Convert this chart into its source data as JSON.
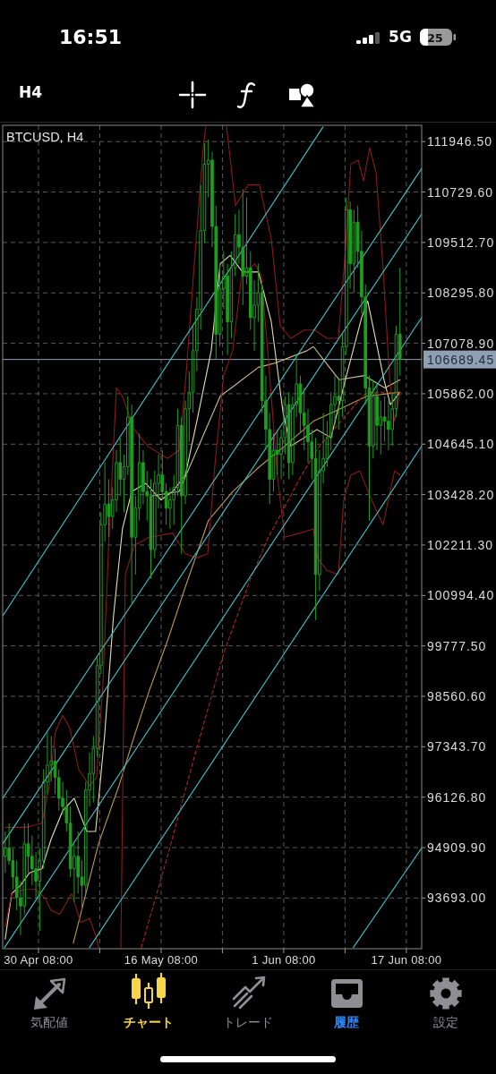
{
  "chart_data": {
    "type": "candlestick",
    "title": "BTCUSD, H4",
    "color": "#1f9e1f",
    "x": [
      "--04-26T00:00",
      "--04-26T12:00",
      "--04-27T00:00",
      "--04-27T12:00",
      "--04-28T00:00",
      "--04-28T12:00",
      "--04-29T00:00",
      "--04-29T12:00",
      "--04-30T00:00",
      "--04-30T12:00",
      "--05-01T00:00",
      "--05-01T12:00",
      "--05-02T00:00",
      "--05-02T12:00",
      "--05-03T00:00",
      "--05-03T12:00",
      "--05-04T00:00",
      "--05-04T12:00",
      "--05-05T00:00",
      "--05-05T12:00",
      "--05-06T00:00",
      "--05-06T12:00",
      "--05-07T00:00",
      "--05-07T12:00",
      "--05-08T00:00",
      "--05-08T12:00",
      "--05-09T00:00",
      "--05-09T12:00",
      "--05-10T00:00",
      "--05-10T12:00",
      "--05-11T00:00",
      "--05-11T12:00",
      "--05-12T00:00",
      "--05-12T12:00",
      "--05-13T00:00",
      "--05-13T12:00",
      "--05-14T00:00",
      "--05-14T12:00",
      "--05-15T00:00",
      "--05-15T12:00",
      "--05-16T00:00",
      "--05-16T12:00",
      "--05-17T00:00",
      "--05-17T12:00",
      "--05-18T00:00",
      "--05-18T12:00",
      "--05-19T00:00",
      "--05-19T12:00",
      "--05-20T00:00",
      "--05-20T12:00",
      "--05-21T00:00",
      "--05-21T12:00",
      "--05-22T00:00",
      "--05-22T12:00",
      "--05-23T00:00",
      "--05-23T12:00",
      "--05-24T00:00",
      "--05-24T12:00",
      "--05-25T00:00",
      "--05-25T12:00",
      "--05-26T00:00",
      "--05-26T12:00",
      "--05-27T00:00",
      "--05-27T12:00",
      "--05-28T00:00",
      "--05-28T12:00",
      "--05-29T00:00",
      "--05-29T12:00",
      "--05-30T00:00",
      "--05-30T12:00",
      "--05-31T00:00",
      "--05-31T12:00",
      "--06-01T00:00",
      "--06-01T12:00",
      "--06-02T00:00",
      "--06-02T12:00",
      "--06-03T00:00",
      "--06-03T12:00",
      "--06-04T00:00",
      "--06-04T12:00",
      "--06-05T00:00",
      "--06-05T12:00",
      "--06-06T00:00",
      "--06-06T12:00",
      "--06-07T00:00",
      "--06-07T12:00",
      "--06-08T00:00",
      "--06-08T12:00",
      "--06-09T00:00",
      "--06-09T12:00",
      "--06-10T00:00",
      "--06-10T12:00",
      "--06-11T00:00",
      "--06-11T12:00",
      "--06-12T00:00",
      "--06-12T12:00",
      "--06-13T00:00",
      "--06-13T12:00",
      "--06-14T00:00",
      "--06-14T12:00",
      "--06-15T00:00",
      "--06-15T12:00",
      "--06-16T00:00",
      "--06-16T12:00"
    ],
    "ohlc": [
      [
        94700,
        95300,
        94300,
        94900
      ],
      [
        94900,
        95500,
        94500,
        94600
      ],
      [
        94600,
        94900,
        93900,
        94200
      ],
      [
        94200,
        94600,
        93400,
        93700
      ],
      [
        93700,
        94100,
        92800,
        93500
      ],
      [
        93500,
        95500,
        93300,
        95000
      ],
      [
        95000,
        95500,
        94300,
        94700
      ],
      [
        94700,
        95200,
        94000,
        94400
      ],
      [
        94400,
        94800,
        93700,
        94100
      ],
      [
        94100,
        94900,
        92900,
        94600
      ],
      [
        94600,
        96800,
        94400,
        96500
      ],
      [
        96500,
        97700,
        96200,
        96900
      ],
      [
        96900,
        97600,
        96500,
        97000
      ],
      [
        97000,
        97300,
        96200,
        96600
      ],
      [
        96600,
        96800,
        95800,
        96100
      ],
      [
        96100,
        96500,
        95700,
        95900
      ],
      [
        95900,
        96300,
        95300,
        95500
      ],
      [
        95500,
        95900,
        94200,
        94400
      ],
      [
        94400,
        95000,
        93600,
        94700
      ],
      [
        94700,
        95300,
        93800,
        94200
      ],
      [
        94200,
        94600,
        93400,
        94000
      ],
      [
        94000,
        96500,
        93800,
        96300
      ],
      [
        96300,
        97200,
        95900,
        96700
      ],
      [
        96700,
        97600,
        96000,
        97300
      ],
      [
        97300,
        99500,
        97100,
        99300
      ],
      [
        99300,
        103000,
        99100,
        102700
      ],
      [
        102700,
        104200,
        102300,
        103200
      ],
      [
        103200,
        103800,
        102400,
        102900
      ],
      [
        102900,
        103600,
        102600,
        103300
      ],
      [
        103300,
        104500,
        103000,
        104200
      ],
      [
        104200,
        104800,
        103400,
        103800
      ],
      [
        103800,
        104400,
        103000,
        104100
      ],
      [
        104100,
        105800,
        103900,
        105300
      ],
      [
        105300,
        105600,
        100800,
        102400
      ],
      [
        102400,
        103400,
        101500,
        103100
      ],
      [
        103100,
        104900,
        102800,
        104200
      ],
      [
        104200,
        104500,
        103200,
        103500
      ],
      [
        103500,
        104000,
        102800,
        103400
      ],
      [
        103400,
        103800,
        101400,
        102100
      ],
      [
        102100,
        104000,
        101900,
        103700
      ],
      [
        103700,
        104400,
        103100,
        103900
      ],
      [
        103900,
        104500,
        103300,
        103500
      ],
      [
        103500,
        103700,
        102700,
        103100
      ],
      [
        103100,
        103600,
        102600,
        103300
      ],
      [
        103300,
        103900,
        102700,
        103600
      ],
      [
        103600,
        105500,
        103400,
        105100
      ],
      [
        105100,
        105300,
        102000,
        103400
      ],
      [
        103400,
        105700,
        103200,
        105500
      ],
      [
        105500,
        106400,
        104700,
        105900
      ],
      [
        105900,
        107500,
        105400,
        106900
      ],
      [
        106900,
        108200,
        106400,
        107900
      ],
      [
        107900,
        110900,
        107400,
        109800
      ],
      [
        109800,
        111900,
        109500,
        111400
      ],
      [
        111400,
        112000,
        110600,
        111500
      ],
      [
        111500,
        111700,
        109400,
        109900
      ],
      [
        109900,
        110400,
        106700,
        107300
      ],
      [
        107300,
        109000,
        107000,
        108400
      ],
      [
        108400,
        109300,
        107900,
        108700
      ],
      [
        108700,
        109000,
        106800,
        107600
      ],
      [
        107600,
        109300,
        107200,
        108900
      ],
      [
        108900,
        110200,
        108700,
        109700
      ],
      [
        109700,
        110300,
        109000,
        109400
      ],
      [
        109400,
        110800,
        108000,
        108700
      ],
      [
        108700,
        110600,
        108500,
        108900
      ],
      [
        108900,
        109300,
        107400,
        107700
      ],
      [
        107700,
        108600,
        106900,
        108000
      ],
      [
        108000,
        109000,
        107600,
        108300
      ],
      [
        108300,
        108500,
        105400,
        105700
      ],
      [
        105700,
        106300,
        104500,
        105000
      ],
      [
        105000,
        105400,
        103200,
        103800
      ],
      [
        103800,
        104900,
        103500,
        104500
      ],
      [
        104500,
        105000,
        103900,
        104400
      ],
      [
        104400,
        105000,
        103800,
        104800
      ],
      [
        104800,
        105800,
        104400,
        105600
      ],
      [
        105600,
        105900,
        103800,
        104200
      ],
      [
        104200,
        105800,
        103900,
        105600
      ],
      [
        105600,
        106800,
        105300,
        106100
      ],
      [
        106100,
        106300,
        104900,
        105400
      ],
      [
        105400,
        106000,
        104500,
        105100
      ],
      [
        105100,
        105500,
        104200,
        104700
      ],
      [
        104700,
        105000,
        103800,
        104300
      ],
      [
        104300,
        104800,
        100400,
        101500
      ],
      [
        101500,
        104500,
        101100,
        104000
      ],
      [
        104000,
        105400,
        103700,
        104300
      ],
      [
        104300,
        105200,
        104100,
        104800
      ],
      [
        104800,
        105900,
        104500,
        105600
      ],
      [
        105600,
        106300,
        105100,
        105800
      ],
      [
        105800,
        106200,
        105000,
        105700
      ],
      [
        105700,
        107300,
        105300,
        107000
      ],
      [
        107000,
        110600,
        106800,
        110300
      ],
      [
        110300,
        110500,
        108400,
        109000
      ],
      [
        109000,
        110300,
        108300,
        110000
      ],
      [
        110000,
        110400,
        108900,
        109300
      ],
      [
        109300,
        109800,
        107800,
        108200
      ],
      [
        108200,
        108500,
        105600,
        106000
      ],
      [
        106000,
        106300,
        102800,
        104600
      ],
      [
        104600,
        106200,
        104300,
        105800
      ],
      [
        105800,
        106100,
        104500,
        105100
      ],
      [
        105100,
        105700,
        104400,
        105300
      ],
      [
        105300,
        105800,
        104700,
        105200
      ],
      [
        105200,
        105700,
        104500,
        105000
      ],
      [
        105000,
        105900,
        104600,
        105500
      ],
      [
        105500,
        107500,
        105300,
        107300
      ],
      [
        107300,
        108900,
        106300,
        106689.45
      ]
    ],
    "series": [
      {
        "type": "line",
        "color": "#e6dfb4",
        "x": [
          "--04-26T00:00",
          "--04-26T20:00",
          "--04-28T00:00",
          "--04-29T04:00",
          "--04-30T19:00",
          "--05-01T23:00",
          "--05-03T12:00",
          "--05-05T00:00",
          "--05-06T15:00",
          "--05-07T19:00",
          "--05-08T23:00",
          "--05-10T03:00",
          "--05-11T07:00",
          "--05-12T12:00",
          "--05-14T08:00",
          "--05-16T08:00",
          "--05-17T20:00",
          "--05-19T12:00",
          "--05-21T00:00",
          "--05-22T21:00",
          "--05-24T01:00",
          "--05-25T08:00",
          "--05-26T23:00",
          "--05-29T01:00",
          "--05-30T17:00",
          "--06-01T06:00",
          "--06-02T06:00",
          "--06-04T00:00",
          "--06-05T16:00",
          "--06-07T12:00",
          "--06-09T09:00",
          "--06-11T12:00",
          "--06-12T07:00",
          "--06-14T10:00",
          "--06-15T06:00",
          "--06-16T12:00"
        ],
        "values": [
          92700,
          93800,
          94000,
          94300,
          94400,
          95100,
          95800,
          96100,
          95300,
          95300,
          97600,
          100500,
          102600,
          103500,
          103700,
          103300,
          103500,
          103900,
          105200,
          106900,
          109000,
          109200,
          108800,
          108800,
          107600,
          105400,
          104600,
          104800,
          105000,
          104800,
          106200,
          107700,
          108100,
          106200,
          105600,
          105900
        ]
      },
      {
        "type": "line",
        "color": "#cdbf94",
        "x": [
          "--05-15T04:00",
          "--05-18T16:00",
          "--05-24T01:00",
          "--05-29T01:00",
          "--05-31T04:00",
          "--06-04T09:00",
          "--06-05T05:00",
          "--06-07T07:00",
          "--06-08T14:00",
          "--06-11T20:00",
          "--06-14T13:00",
          "--06-16T12:00"
        ],
        "values": [
          103400,
          103500,
          105800,
          106500,
          106600,
          106900,
          107000,
          106500,
          106200,
          106300,
          106000,
          106200
        ]
      },
      {
        "type": "line",
        "color": "#b89a52",
        "x": [
          "--05-04T21:00",
          "--05-08T04:00",
          "--05-10T20:00",
          "--05-12T20:00",
          "--05-14T19:00",
          "--05-17T04:00",
          "--05-19T12:00",
          "--05-22T12:00",
          "--05-25T16:00",
          "--05-29T04:00",
          "--06-01T11:00",
          "--06-05T05:00",
          "--06-08T17:00",
          "--06-12T04:00",
          "--06-16T12:00"
        ],
        "values": [
          92600,
          95000,
          96400,
          97600,
          98700,
          99900,
          101200,
          102800,
          103500,
          104100,
          104600,
          105200,
          105500,
          105800,
          105900
        ]
      },
      {
        "type": "line",
        "color": "#b22222",
        "line_style": "dashed",
        "x": [
          "--05-13T18:00",
          "--05-17T04:00",
          "--05-20T16:00",
          "--05-24T12:00",
          "--05-28T00:00",
          "--05-30T08:00",
          "--06-01T16:00",
          "--06-03T16:00",
          "--06-06T00:00",
          "--06-08T08:00",
          "--06-10T16:00",
          "--06-12T04:00",
          "--06-14T04:00",
          "--06-16T12:00"
        ],
        "values": [
          92500,
          94700,
          97100,
          99600,
          101400,
          102400,
          103200,
          103900,
          104600,
          105100,
          105600,
          105900,
          105900,
          105900
        ]
      },
      {
        "type": "line",
        "color": "#8b1a1a",
        "x": [
          "--04-26T00:00",
          "--04-28T19:00",
          "--04-30T19:00",
          "--05-01T18:00",
          "--05-02T13:00",
          "--05-03T12:00",
          "--05-04T10:00",
          "--05-05T14:00",
          "--05-07T00:00",
          "--05-07T22:00",
          "--05-08T18:00",
          "--05-09T13:00",
          "--05-10T12:00",
          "--05-11T07:00",
          "--05-12T20:00",
          "--05-14T14:00",
          "--05-17T04:00",
          "--05-18T16:00",
          "--05-19T12:00",
          "--05-20T16:00",
          "--05-21T20:00",
          "--05-22T04:00"
        ],
        "values": [
          95400,
          95400,
          95500,
          96400,
          97700,
          98100,
          97800,
          96800,
          96400,
          96600,
          98900,
          102400,
          106000,
          105800,
          105000,
          104600,
          104300,
          104500,
          106100,
          109000,
          111800,
          112300
        ]
      },
      {
        "type": "line",
        "color": "#8b1a1a",
        "x": [
          "--05-24T21:00",
          "--05-26T01:00",
          "--05-27T16:00",
          "--05-29T04:00",
          "--05-30T17:00",
          "--05-31T21:00",
          "--06-02T06:00",
          "--06-04T00:00",
          "--06-05T10:00",
          "--06-06T23:00",
          "--06-08T11:00",
          "--06-09T07:00",
          "--06-10T02:00",
          "--06-11T01:00",
          "--06-11T18:00",
          "--06-12T13:00",
          "--06-13T09:00",
          "--06-14T07:00",
          "--06-15T03:00",
          "--06-15T19:00",
          "--06-16T12:00"
        ],
        "values": [
          112300,
          110400,
          110900,
          110900,
          109600,
          107500,
          107200,
          107400,
          107400,
          107200,
          107200,
          109100,
          111400,
          111500,
          111000,
          111800,
          111200,
          108900,
          106300,
          105200,
          105900
        ]
      },
      {
        "type": "line",
        "color": "#8b1a1a",
        "x": [
          "--04-26T00:00",
          "--04-26T20:00",
          "--04-28T14:00",
          "--04-29T23:00",
          "--05-01T04:00",
          "--05-01T23:00",
          "--05-03T03:00",
          "--05-04T16:00",
          "--05-05T20:00",
          "--05-07T00:00",
          "--05-07T19:00",
          "--05-08T04:00"
        ],
        "values": [
          93000,
          93800,
          93900,
          93900,
          93700,
          93400,
          93300,
          93800,
          93100,
          93200,
          92800,
          92500
        ]
      },
      {
        "type": "line",
        "color": "#8b1a1a",
        "x": [
          "--05-11T02:00",
          "--05-11T16:00",
          "--05-12T20:00",
          "--05-14T19:00",
          "--05-17T20:00",
          "--05-19T12:00",
          "--05-21T00:00",
          "--05-22T10:00",
          "--05-23T08:00",
          "--05-24T12:00",
          "--05-25T16:00",
          "--05-26T20:00",
          "--05-28T14:00",
          "--05-29T10:00",
          "--05-30T08:00",
          "--05-31T12:00",
          "--06-01T11:00",
          "--06-03T11:00",
          "--06-05T05:00",
          "--06-05T18:00",
          "--06-06T23:00",
          "--06-08T11:00",
          "--06-09T04:00",
          "--06-10T02:00",
          "--06-11T06:00",
          "--06-12T19:00",
          "--06-14T07:00",
          "--06-15T19:00",
          "--06-16T12:00"
        ],
        "values": [
          92500,
          101500,
          102200,
          102400,
          102500,
          102000,
          101900,
          102000,
          104100,
          106300,
          106900,
          108700,
          109000,
          108700,
          106700,
          103900,
          102400,
          102500,
          102600,
          101900,
          101600,
          101500,
          103300,
          103900,
          104000,
          103300,
          102700,
          104000,
          103900
        ]
      },
      {
        "type": "line",
        "color": "#40c4cc",
        "x": [
          "--04-25T16:00",
          "--06-06T11:00"
        ],
        "values": [
          100500,
          112300
        ]
      },
      {
        "type": "line",
        "color": "#40c4cc",
        "x": [
          "--04-25T16:00",
          "--06-19T08:00"
        ],
        "values": [
          96100,
          111300
        ]
      },
      {
        "type": "line",
        "color": "#40c4cc",
        "x": [
          "--04-25T16:00",
          "--06-19T08:00"
        ],
        "values": [
          95000,
          110200
        ]
      },
      {
        "type": "line",
        "color": "#40c4cc",
        "x": [
          "--04-25T22:00",
          "--06-19T08:00"
        ],
        "values": [
          92500,
          107700
        ]
      },
      {
        "type": "line",
        "color": "#40c4cc",
        "x": [
          "--05-07T00:00",
          "--06-19T08:00"
        ],
        "values": [
          92500,
          104600
        ]
      },
      {
        "type": "line",
        "color": "#40c4cc",
        "x": [
          "--06-10T10:00",
          "--06-19T08:00"
        ],
        "values": [
          92500,
          94900
        ]
      }
    ],
    "xlim": [
      "--04-25T16:00",
      "--06-19T08:00"
    ],
    "xticks": [
      {
        "value": "--04-30T08:00",
        "label": "30 Apr 08:00"
      },
      {
        "value": "--05-08T08:00",
        "label": null
      },
      {
        "value": "--05-16T08:00",
        "label": "16 May 08:00"
      },
      {
        "value": "--05-24T08:00",
        "label": null
      },
      {
        "value": "--06-01T08:00",
        "label": "1 Jun 08:00"
      },
      {
        "value": "--06-09T08:00",
        "label": null
      },
      {
        "value": "--06-17T08:00",
        "label": "17 Jun 08:00"
      }
    ],
    "ylim": [
      92470,
      112340
    ],
    "yticks": [
      {
        "value": 111946.5,
        "label": "111946.50"
      },
      {
        "value": 110729.6,
        "label": "110729.60"
      },
      {
        "value": 109512.7,
        "label": "109512.70"
      },
      {
        "value": 108295.8,
        "label": "108295.80"
      },
      {
        "value": 107078.9,
        "label": "107078.90"
      },
      {
        "value": 105862,
        "label": "105862.00"
      },
      {
        "value": 104645.1,
        "label": "104645.10"
      },
      {
        "value": 103428.2,
        "label": "103428.20"
      },
      {
        "value": 102211.3,
        "label": "102211.30"
      },
      {
        "value": 100994.4,
        "label": "100994.40"
      },
      {
        "value": 99777.5,
        "label": "99777.50"
      },
      {
        "value": 98560.6,
        "label": "98560.60"
      },
      {
        "value": 97343.7,
        "label": "97343.70"
      },
      {
        "value": 96126.8,
        "label": "96126.80"
      },
      {
        "value": 94909.9,
        "label": "94909.90"
      },
      {
        "value": 93693,
        "label": "93693.00"
      }
    ],
    "grid": true,
    "ref_lines": [
      {
        "axis": "y",
        "value": 106689.45,
        "label": "106689.45",
        "color": "#8fa0b4"
      }
    ],
    "annotations": [
      "16:51",
      "5G",
      "25",
      "H4",
      "気配値",
      "チャート",
      "トレード",
      "履歴",
      "設定"
    ]
  }
}
